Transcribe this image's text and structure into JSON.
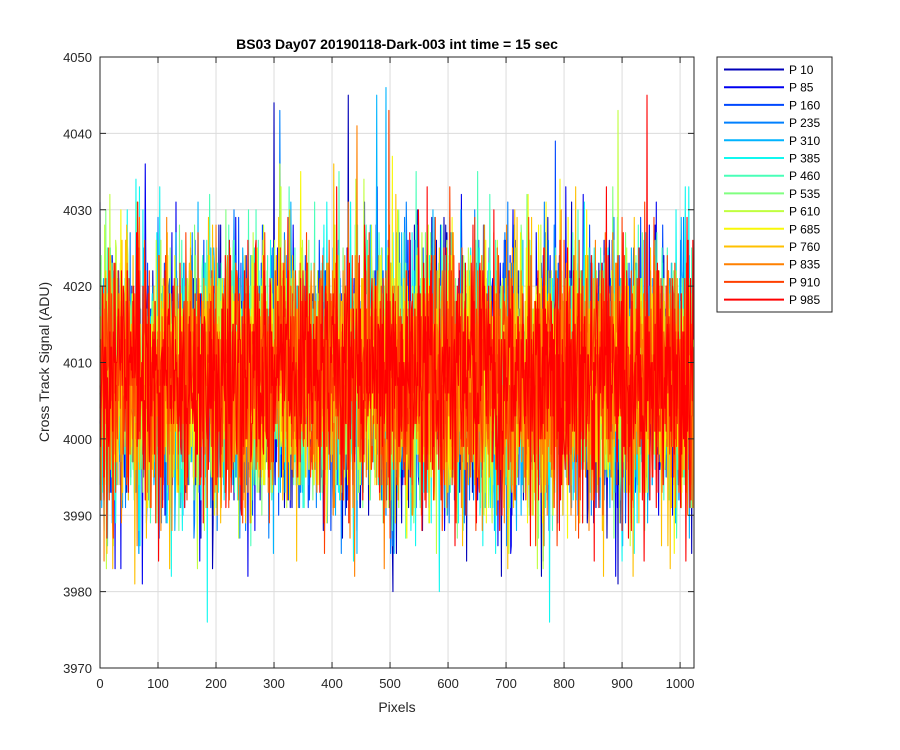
{
  "chart_data": {
    "type": "line",
    "title": "BS03 Day07 20190118-Dark-003 int time = 15 sec",
    "xlabel": "Pixels",
    "ylabel": "Cross Track Signal (ADU)",
    "xlim": [
      0,
      1024
    ],
    "ylim": [
      3970,
      4050
    ],
    "xticks": [
      0,
      100,
      200,
      300,
      400,
      500,
      600,
      700,
      800,
      900,
      1000
    ],
    "yticks": [
      3970,
      3980,
      3990,
      4000,
      4010,
      4020,
      4030,
      4040,
      4050
    ],
    "grid": true,
    "legend_position": "outside-top-right",
    "n_points_per_series": 1024,
    "series": [
      {
        "name": "P 10",
        "color": "#0000b8",
        "mean": 4008,
        "min": 3980,
        "max": 4045
      },
      {
        "name": "P 85",
        "color": "#0000f0",
        "mean": 4008,
        "min": 3981,
        "max": 4045
      },
      {
        "name": "P 160",
        "color": "#0048ff",
        "mean": 4008,
        "min": 3984,
        "max": 4043
      },
      {
        "name": "P 235",
        "color": "#0080ff",
        "mean": 4008,
        "min": 3985,
        "max": 4046
      },
      {
        "name": "P 310",
        "color": "#00b4ff",
        "mean": 4008,
        "min": 3985,
        "max": 4046
      },
      {
        "name": "P 385",
        "color": "#10f8f0",
        "mean": 4008,
        "min": 3976,
        "max": 4036
      },
      {
        "name": "P 460",
        "color": "#48ffb8",
        "mean": 4008,
        "min": 3985,
        "max": 4035
      },
      {
        "name": "P 535",
        "color": "#80ff80",
        "mean": 4008,
        "min": 3986,
        "max": 4039
      },
      {
        "name": "P 610",
        "color": "#c0ff40",
        "mean": 4008,
        "min": 3983,
        "max": 4043
      },
      {
        "name": "P 685",
        "color": "#f8f808",
        "mean": 4008,
        "min": 3983,
        "max": 4037
      },
      {
        "name": "P 760",
        "color": "#ffc000",
        "mean": 4008,
        "min": 3981,
        "max": 4036
      },
      {
        "name": "P 835",
        "color": "#ff8000",
        "mean": 4008,
        "min": 3981,
        "max": 4043
      },
      {
        "name": "P 910",
        "color": "#ff4000",
        "mean": 4008,
        "min": 3983,
        "max": 4043
      },
      {
        "name": "P 985",
        "color": "#ff0000",
        "mean": 4008,
        "min": 3983,
        "max": 4045
      }
    ],
    "spikes": [
      {
        "series": "P 10",
        "x": 300,
        "y": 4044
      },
      {
        "series": "P 10",
        "x": 428,
        "y": 4045
      },
      {
        "series": "P 10",
        "x": 505,
        "y": 3980
      },
      {
        "series": "P 10",
        "x": 893,
        "y": 3981
      },
      {
        "series": "P 85",
        "x": 73,
        "y": 3981
      },
      {
        "series": "P 85",
        "x": 255,
        "y": 3982
      },
      {
        "series": "P 160",
        "x": 785,
        "y": 4039
      },
      {
        "series": "P 235",
        "x": 310,
        "y": 4043
      },
      {
        "series": "P 310",
        "x": 477,
        "y": 4045
      },
      {
        "series": "P 310",
        "x": 493,
        "y": 4046
      },
      {
        "series": "P 385",
        "x": 185,
        "y": 3976
      },
      {
        "series": "P 385",
        "x": 775,
        "y": 3976
      },
      {
        "series": "P 385",
        "x": 585,
        "y": 3980
      },
      {
        "series": "P 610",
        "x": 893,
        "y": 4043
      },
      {
        "series": "P 835",
        "x": 443,
        "y": 4041
      },
      {
        "series": "P 910",
        "x": 498,
        "y": 4043
      },
      {
        "series": "P 985",
        "x": 943,
        "y": 4045
      },
      {
        "series": "P 760",
        "x": 60,
        "y": 3981
      }
    ]
  }
}
